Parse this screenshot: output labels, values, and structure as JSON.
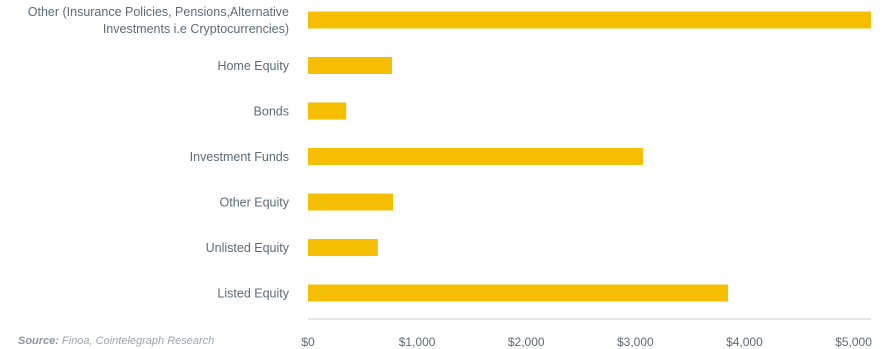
{
  "chart_data": {
    "type": "bar",
    "orientation": "horizontal",
    "categories": [
      "Other (Insurance Policies, Pensions,Alternative Investments i.e Cryptocurrencies)",
      "Home Equity",
      "Bonds",
      "Investment Funds",
      "Other Equity",
      "Unlisted Equity",
      "Listed Equity"
    ],
    "category_lines": [
      [
        "Other (Insurance Policies, Pensions,Alternative",
        "Investments i.e Cryptocurrencies)"
      ],
      [
        "Home Equity"
      ],
      [
        "Bonds"
      ],
      [
        "Investment Funds"
      ],
      [
        "Other Equity"
      ],
      [
        "Unlisted Equity"
      ],
      [
        "Listed Equity"
      ]
    ],
    "values": [
      5160,
      770,
      350,
      3070,
      780,
      640,
      3850
    ],
    "xlim": [
      0,
      5160
    ],
    "ticks": [
      0,
      1000,
      2000,
      3000,
      4000,
      5000
    ],
    "tick_labels": [
      "$0",
      "$1,000",
      "$2,000",
      "$3,000",
      "$4,000",
      "$5,000"
    ],
    "bar_color": "#f6be00",
    "grid": false,
    "legend": "none"
  },
  "source": {
    "label": "Source:",
    "text": "Finoa, Cointelegraph Research"
  }
}
